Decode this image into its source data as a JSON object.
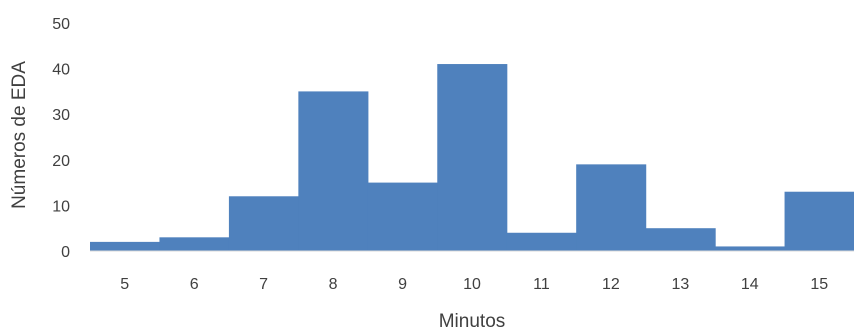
{
  "chart_data": {
    "type": "bar",
    "categories": [
      "5",
      "6",
      "7",
      "8",
      "9",
      "10",
      "11",
      "12",
      "13",
      "14",
      "15"
    ],
    "values": [
      2,
      3,
      12,
      35,
      15,
      41,
      4,
      19,
      5,
      1,
      13
    ],
    "title": "",
    "xlabel": "Minutos",
    "ylabel": "Números de EDA",
    "ylim": [
      0,
      50
    ],
    "yticks": [
      "0",
      "10",
      "20",
      "30",
      "40",
      "50"
    ],
    "grid": false,
    "legend": "none",
    "bar_color": "#4f81bd"
  }
}
